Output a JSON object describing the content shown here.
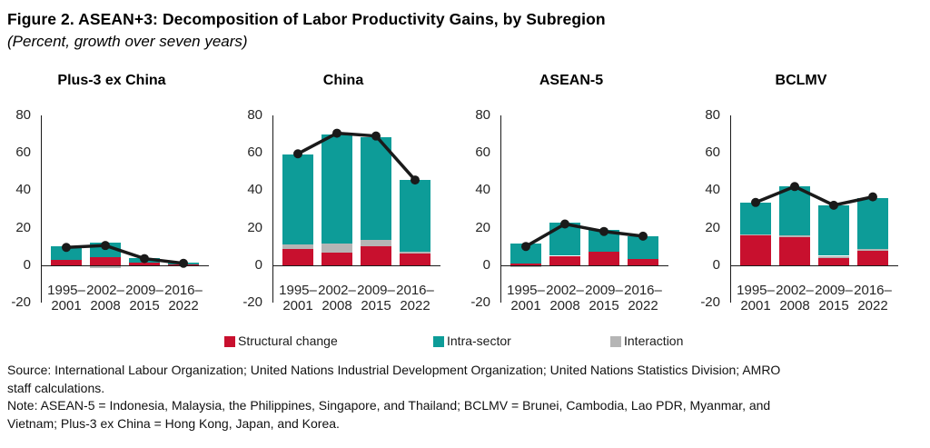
{
  "title": "Figure 2. ASEAN+3: Decomposition of Labor Productivity Gains, by Subregion",
  "subtitle": "(Percent, growth over seven years)",
  "legend": [
    {
      "label": "Structural change",
      "color": "#c8102e"
    },
    {
      "label": "Intra-sector",
      "color": "#0d9c98"
    },
    {
      "label": "Interaction",
      "color": "#b5b5b5"
    }
  ],
  "footer": {
    "lines": [
      "Source: International Labour Organization; United Nations Industrial Development Organization; United Nations Statistics Division; AMRO",
      "staff calculations.",
      "Note: ASEAN-5 = Indonesia, Malaysia, the Philippines, Singapore, and Thailand; BCLMV = Brunei, Cambodia, Lao PDR, Myanmar, and",
      "Vietnam; Plus-3 ex China = Hong Kong, Japan, and Korea."
    ]
  },
  "chart_data": [
    {
      "type": "bar",
      "title": "Plus-3 ex China",
      "categories": [
        [
          "1995–",
          "2001"
        ],
        [
          "2002–",
          "2008"
        ],
        [
          "2009–",
          "2015"
        ],
        [
          "2016–",
          "2022"
        ]
      ],
      "ylim": [
        -20,
        80
      ],
      "yticks": [
        80,
        60,
        40,
        20,
        0,
        -20
      ],
      "grid": false,
      "series": [
        {
          "name": "Structural change",
          "color": "#c8102e",
          "values": [
            3,
            4.5,
            1.5,
            0.5
          ]
        },
        {
          "name": "Interaction",
          "color": "#b5b5b5",
          "values": [
            0,
            -1.5,
            0,
            0
          ]
        },
        {
          "name": "Intra-sector",
          "color": "#0d9c98",
          "values": [
            7,
            7.5,
            2.5,
            1
          ]
        }
      ],
      "line": {
        "color": "#1a1a1a",
        "values": [
          9.5,
          10.5,
          3.5,
          1
        ]
      }
    },
    {
      "type": "bar",
      "title": "China",
      "categories": [
        [
          "1995–",
          "2001"
        ],
        [
          "2002–",
          "2008"
        ],
        [
          "2009–",
          "2015"
        ],
        [
          "2016–",
          "2022"
        ]
      ],
      "ylim": [
        -20,
        80
      ],
      "yticks": [
        80,
        60,
        40,
        20,
        0,
        -20
      ],
      "grid": false,
      "series": [
        {
          "name": "Structural change",
          "color": "#c8102e",
          "values": [
            8.5,
            6.5,
            10,
            6
          ]
        },
        {
          "name": "Interaction",
          "color": "#b5b5b5",
          "values": [
            2.5,
            5,
            3.5,
            1
          ]
        },
        {
          "name": "Intra-sector",
          "color": "#0d9c98",
          "values": [
            48,
            58.5,
            55,
            38.5
          ]
        }
      ],
      "line": {
        "color": "#1a1a1a",
        "values": [
          59.5,
          70.5,
          69,
          45.5
        ]
      }
    },
    {
      "type": "bar",
      "title": "ASEAN-5",
      "categories": [
        [
          "1995–",
          "2001"
        ],
        [
          "2002–",
          "2008"
        ],
        [
          "2009–",
          "2015"
        ],
        [
          "2016–",
          "2022"
        ]
      ],
      "ylim": [
        -20,
        80
      ],
      "yticks": [
        80,
        60,
        40,
        20,
        0,
        -20
      ],
      "grid": false,
      "series": [
        {
          "name": "Structural change",
          "color": "#c8102e",
          "values": [
            1,
            5,
            7,
            3.5
          ]
        },
        {
          "name": "Interaction",
          "color": "#b5b5b5",
          "values": [
            -1,
            0,
            0,
            0
          ]
        },
        {
          "name": "Intra-sector",
          "color": "#0d9c98",
          "values": [
            10.5,
            17.5,
            12,
            12
          ]
        }
      ],
      "line": {
        "color": "#1a1a1a",
        "values": [
          10,
          22,
          18,
          15.5
        ]
      }
    },
    {
      "type": "bar",
      "title": "BCLMV",
      "categories": [
        [
          "1995–",
          "2001"
        ],
        [
          "2002–",
          "2008"
        ],
        [
          "2009–",
          "2015"
        ],
        [
          "2016–",
          "2022"
        ]
      ],
      "ylim": [
        -20,
        80
      ],
      "yticks": [
        80,
        60,
        40,
        20,
        0,
        -20
      ],
      "grid": false,
      "series": [
        {
          "name": "Structural change",
          "color": "#c8102e",
          "values": [
            16,
            15,
            4,
            7.5
          ]
        },
        {
          "name": "Interaction",
          "color": "#b5b5b5",
          "values": [
            0.5,
            1,
            1,
            1
          ]
        },
        {
          "name": "Intra-sector",
          "color": "#0d9c98",
          "values": [
            17,
            26,
            27,
            27.5
          ]
        }
      ],
      "line": {
        "color": "#1a1a1a",
        "values": [
          33.5,
          42,
          32,
          36.5
        ]
      }
    }
  ]
}
